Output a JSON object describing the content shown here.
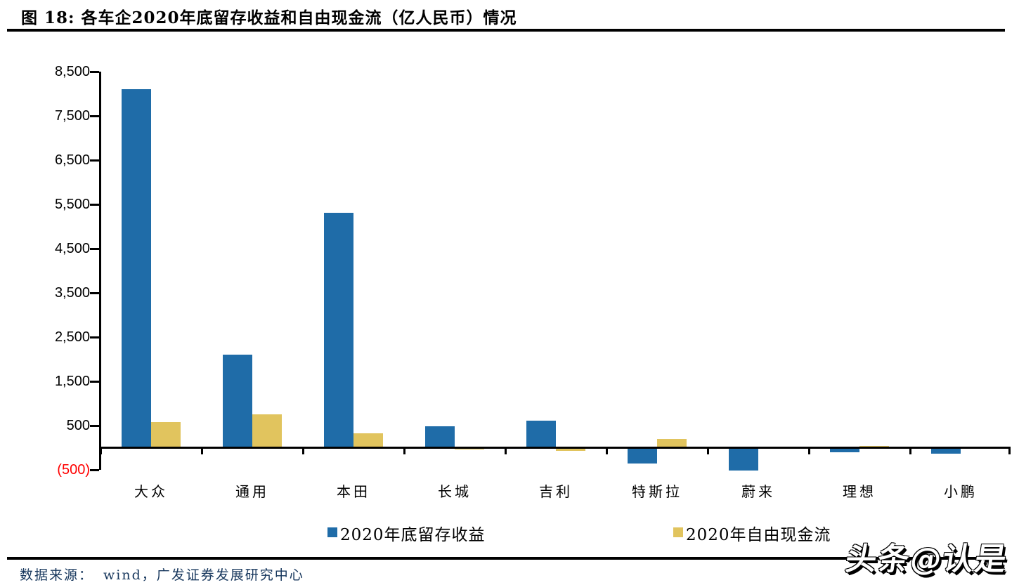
{
  "header": {
    "title": "图 18: 各车企2020年底留存收益和自由现金流（亿人民币）情况"
  },
  "chart_data": {
    "type": "bar",
    "title": "各车企2020年底留存收益和自由现金流（亿人民币）情况",
    "categories": [
      "大众",
      "通用",
      "本田",
      "长城",
      "吉利",
      "特斯拉",
      "蔚来",
      "理想",
      "小鹏"
    ],
    "series": [
      {
        "name": "2020年底留存收益",
        "color": "#1F6CA8",
        "values": [
          8100,
          2100,
          5300,
          480,
          600,
          -350,
          -510,
          -90,
          -130
        ]
      },
      {
        "name": "2020年自由现金流",
        "color": "#E1C45E",
        "values": [
          570,
          740,
          310,
          -30,
          -60,
          190,
          0,
          30,
          0
        ]
      }
    ],
    "xlabel": "",
    "ylabel": "",
    "ylim": [
      -500,
      8500
    ],
    "ytick_interval": 1000,
    "ytick_labels": [
      "8,500",
      "7,500",
      "6,500",
      "5,500",
      "4,500",
      "3,500",
      "2,500",
      "1,500",
      "500",
      "(500)"
    ],
    "negative_tick_color": "#FF0000",
    "axis_color": "#000000",
    "grid": false,
    "legend_position": "bottom"
  },
  "footer": {
    "source_label": "数据来源：",
    "source_text": "wind，广发证券发展研究中心"
  },
  "watermark": {
    "text": "头条@认是"
  }
}
